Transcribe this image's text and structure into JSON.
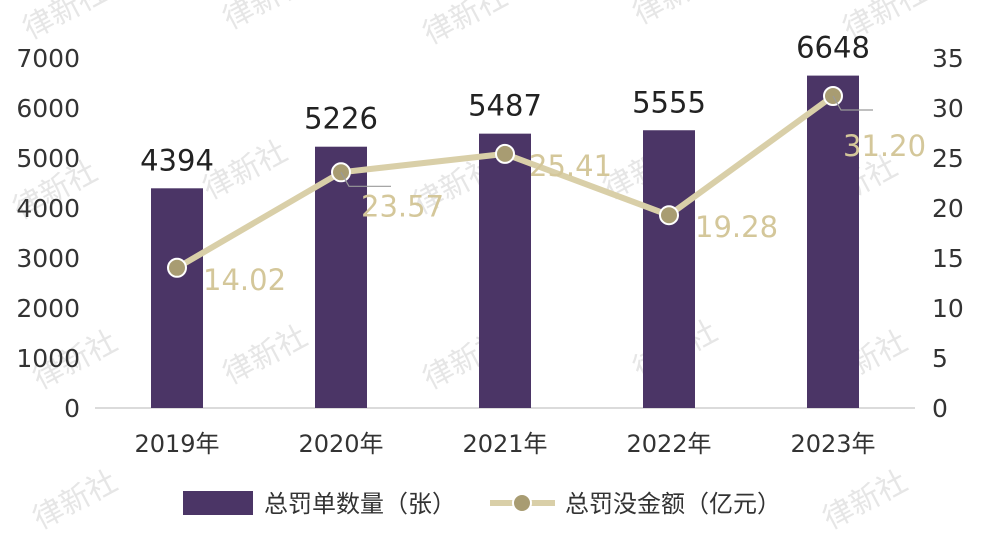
{
  "watermark": "律新社",
  "chart_data": {
    "type": "bar+line",
    "categories": [
      "2019年",
      "2020年",
      "2021年",
      "2022年",
      "2023年"
    ],
    "series": [
      {
        "name": "总罚单数量（张）",
        "type": "bar",
        "axis": "left",
        "values": [
          4394,
          5226,
          5487,
          5555,
          6648
        ],
        "color": "#4b3566"
      },
      {
        "name": "总罚没金额（亿元）",
        "type": "line",
        "axis": "right",
        "values": [
          14.02,
          23.57,
          25.41,
          19.28,
          31.2
        ],
        "labels": [
          "14.02",
          "23.57",
          "25.41",
          "19.28",
          "31.20"
        ],
        "color": "#d9cfa8"
      }
    ],
    "y_left": {
      "min": 0,
      "max": 7000,
      "ticks": [
        "0",
        "1000",
        "2000",
        "3000",
        "4000",
        "5000",
        "6000",
        "7000"
      ]
    },
    "y_right": {
      "min": 0,
      "max": 35,
      "ticks": [
        "0",
        "5",
        "10",
        "15",
        "20",
        "25",
        "30",
        "35"
      ]
    },
    "grid": false,
    "legend_position": "bottom-center"
  }
}
